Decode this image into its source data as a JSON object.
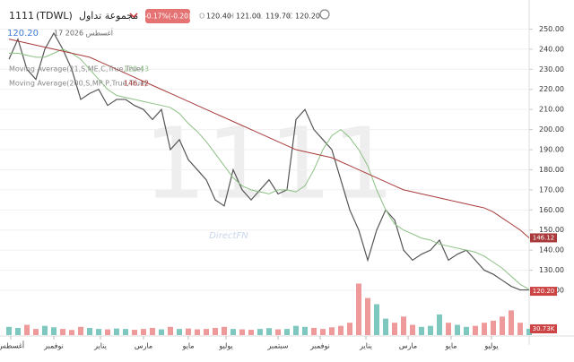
{
  "header": {
    "symbol": "1111",
    "exchange": "(TDWL)",
    "company": "مجموعة تداول",
    "change": "-0.17%(-0.20)",
    "ohlc": [
      {
        "key": "O",
        "value": "120.40"
      },
      {
        "key": "H",
        "value": "121.00"
      },
      {
        "key": "L",
        "value": "119.70"
      },
      {
        "key": "C",
        "value": "120.20"
      }
    ],
    "last_price": "120.20",
    "date": "17 أغسطس 2026"
  },
  "chart_data": {
    "type": "line",
    "watermark": "1111",
    "brand": "DirectFN",
    "x": [
      0,
      1,
      2,
      3,
      4,
      5,
      6,
      7,
      8,
      9,
      10,
      11,
      12,
      13,
      14,
      15,
      16,
      17,
      18,
      19,
      20,
      21,
      22,
      23,
      24,
      25,
      26,
      27,
      28,
      29,
      30,
      31,
      32,
      33,
      34,
      35,
      36,
      37,
      38,
      39,
      40,
      41,
      42,
      43,
      44,
      45,
      46,
      47,
      48,
      49,
      50,
      51,
      52,
      53,
      54,
      55,
      56,
      57,
      58
    ],
    "xlim": [
      -1,
      58
    ],
    "xticks": [
      {
        "value": 0.2,
        "label": "أغسطس"
      },
      {
        "value": 5,
        "label": "نوفمبر"
      },
      {
        "value": 10.2,
        "label": "يناير"
      },
      {
        "value": 15,
        "label": "مارس"
      },
      {
        "value": 20,
        "label": "مايو"
      },
      {
        "value": 24.2,
        "label": "يوليو"
      },
      {
        "value": 30,
        "label": "سبتمبر"
      },
      {
        "value": 34.7,
        "label": "نوفمبر"
      },
      {
        "value": 39.8,
        "label": "يناير"
      },
      {
        "value": 44.5,
        "label": "مارس"
      },
      {
        "value": 49.3,
        "label": "مايو"
      },
      {
        "value": 53.8,
        "label": "يوليو"
      }
    ],
    "ylim": [
      116,
      256
    ],
    "yticks": [
      {
        "value": 120,
        "label": "120.00"
      },
      {
        "value": 130,
        "label": "130.00"
      },
      {
        "value": 140,
        "label": "140.00"
      },
      {
        "value": 150,
        "label": "150.00"
      },
      {
        "value": 160,
        "label": "160.00"
      },
      {
        "value": 170,
        "label": "170.00"
      },
      {
        "value": 180,
        "label": "180.00"
      },
      {
        "value": 190,
        "label": "190.00"
      },
      {
        "value": 200,
        "label": "200.00"
      },
      {
        "value": 210,
        "label": "210.00"
      },
      {
        "value": 220,
        "label": "220.00"
      },
      {
        "value": 230,
        "label": "230.00"
      },
      {
        "value": 240,
        "label": "240.00"
      },
      {
        "value": 250,
        "label": "250.00"
      }
    ],
    "grid": true,
    "price": {
      "color": "#555555",
      "values": [
        235,
        245,
        230,
        225,
        240,
        248,
        240,
        230,
        215,
        218,
        220,
        212,
        215,
        215,
        212,
        210,
        205,
        210,
        190,
        195,
        185,
        180,
        175,
        165,
        162,
        180,
        170,
        165,
        170,
        175,
        168,
        170,
        205,
        210,
        200,
        195,
        190,
        175,
        160,
        150,
        135,
        150,
        160,
        155,
        140,
        135,
        138,
        140,
        145,
        135,
        138,
        140,
        135,
        130,
        128,
        125,
        122,
        120.2,
        120.2
      ],
      "tag": "120.20"
    },
    "series": [
      {
        "name": "Moving Average(21,S,ME,C,True,True)",
        "color": "#8cc084",
        "values": [
          238,
          238,
          237,
          236,
          236,
          238,
          240,
          238,
          235,
          230,
          225,
          220,
          217,
          216,
          215,
          214,
          213,
          212,
          211,
          208,
          203,
          199,
          194,
          188,
          182,
          176,
          172,
          170,
          169,
          168,
          170,
          170,
          169,
          172,
          180,
          190,
          197,
          200,
          196,
          190,
          182,
          170,
          160,
          153,
          150,
          148,
          146,
          145,
          143,
          142,
          141,
          140,
          139,
          137,
          134,
          131,
          127,
          123,
          120.43
        ]
      },
      {
        "name": "Moving Average(200,S,MP,P,True,True)",
        "color": "#a83a3a",
        "values": [
          245,
          244,
          243,
          242,
          241,
          240,
          239,
          238,
          237,
          236,
          234,
          232,
          230,
          228,
          226,
          224,
          222,
          220,
          218,
          216,
          214,
          212,
          210,
          208,
          206,
          204,
          202,
          200,
          198,
          196,
          194,
          192,
          190,
          189,
          188,
          187,
          186,
          184,
          182,
          180,
          178,
          176,
          174,
          172,
          170,
          169,
          168,
          167,
          166,
          165,
          164,
          163,
          162,
          161,
          159,
          156,
          153,
          150,
          146.12
        ]
      }
    ],
    "volume": {
      "axis": "y2",
      "values": [
        40,
        35,
        50,
        30,
        45,
        38,
        30,
        25,
        40,
        35,
        30,
        28,
        32,
        30,
        26,
        30,
        35,
        28,
        40,
        30,
        32,
        28,
        30,
        35,
        40,
        30,
        28,
        26,
        30,
        34,
        28,
        30,
        45,
        40,
        35,
        30,
        38,
        45,
        60,
        250,
        180,
        150,
        80,
        60,
        90,
        50,
        40,
        45,
        100,
        60,
        50,
        40,
        45,
        60,
        70,
        90,
        120,
        60,
        30.73
      ],
      "up_color": "#7fc8c0",
      "down_color": "#ee9a9a",
      "tag": "30.73K"
    },
    "y2lim": [
      0,
      300
    ]
  }
}
